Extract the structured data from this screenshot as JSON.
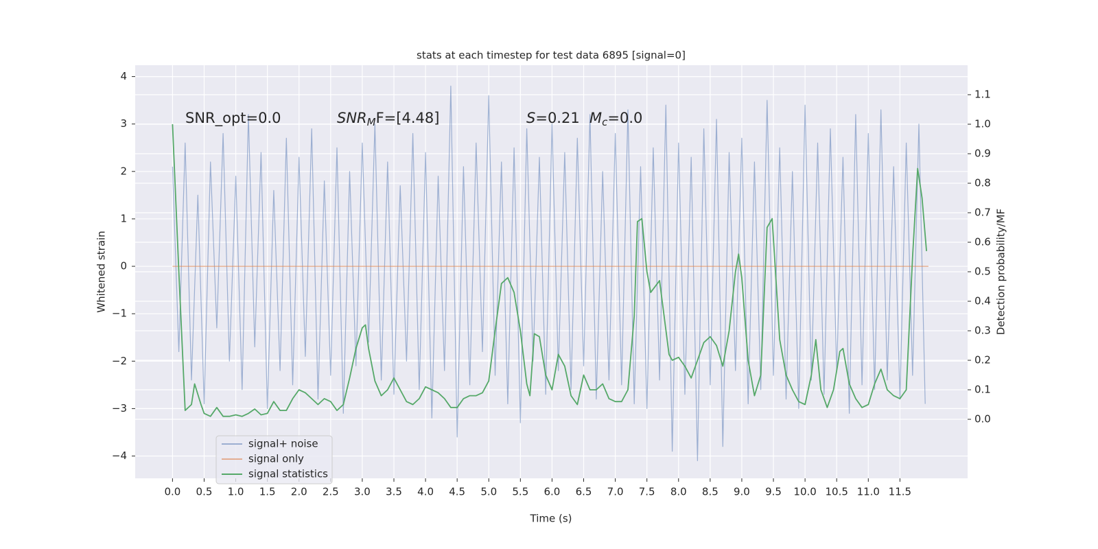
{
  "chart_data": {
    "type": "line",
    "title": "stats at each timestep for test data 6895 [signal=0]",
    "xlabel": "Time (s)",
    "ylabel": "Whitened strain",
    "y2label": "Detection probability/MF",
    "xlim": [
      -0.59,
      12.57
    ],
    "ylim": [
      -4.47,
      4.24
    ],
    "y2lim": [
      -0.2,
      1.2
    ],
    "xticks": [
      {
        "value": 0,
        "label": "0.0"
      },
      {
        "value": 0.5,
        "label": "0.5"
      },
      {
        "value": 1,
        "label": "1.0"
      },
      {
        "value": 1.5,
        "label": "1.5"
      },
      {
        "value": 2,
        "label": "2.0"
      },
      {
        "value": 2.5,
        "label": "2.5"
      },
      {
        "value": 3,
        "label": "3.0"
      },
      {
        "value": 3.5,
        "label": "3.5"
      },
      {
        "value": 4,
        "label": "4.0"
      },
      {
        "value": 4.5,
        "label": "4.5"
      },
      {
        "value": 5,
        "label": "5.0"
      },
      {
        "value": 5.5,
        "label": "5.5"
      },
      {
        "value": 6,
        "label": "6.0"
      },
      {
        "value": 6.5,
        "label": "6.5"
      },
      {
        "value": 7,
        "label": "7.0"
      },
      {
        "value": 7.5,
        "label": "7.5"
      },
      {
        "value": 8,
        "label": "8.0"
      },
      {
        "value": 8.5,
        "label": "8.5"
      },
      {
        "value": 9,
        "label": "9.0"
      },
      {
        "value": 9.5,
        "label": "9.5"
      },
      {
        "value": 10,
        "label": "10.0"
      },
      {
        "value": 10.5,
        "label": "10.5"
      },
      {
        "value": 11,
        "label": "11.0"
      },
      {
        "value": 11.5,
        "label": "11.5"
      }
    ],
    "yticks": [
      {
        "value": -4,
        "label": "−4"
      },
      {
        "value": -3,
        "label": "−3"
      },
      {
        "value": -2,
        "label": "−2"
      },
      {
        "value": -1,
        "label": "−1"
      },
      0,
      1,
      2,
      3,
      4
    ],
    "y2ticks": [
      {
        "value": 0,
        "label": "0.0"
      },
      0.1,
      0.2,
      0.3,
      0.4,
      0.5,
      0.6,
      0.7,
      0.8,
      0.9,
      {
        "value": 1,
        "label": "1.0"
      },
      1.1
    ],
    "grid": true,
    "legend": "lower left",
    "annotations": [
      {
        "text": "SNR_opt=0.0"
      },
      {
        "text": "SNR",
        "subscript": "M",
        "suffix": "F=[4.48]"
      },
      {
        "text": "S",
        "suffix": "=0.21"
      },
      {
        "text": "M",
        "subscript": "c",
        "suffix": "=0.0"
      }
    ],
    "series": [
      {
        "name": "signal+ noise",
        "color": "#4c72b0",
        "axis": "y",
        "x": [
          0,
          0.1,
          0.2,
          0.3,
          0.4,
          0.5,
          0.6,
          0.7,
          0.8,
          0.9,
          1,
          1.1,
          1.2,
          1.3,
          1.4,
          1.5,
          1.6,
          1.7,
          1.8,
          1.9,
          2,
          2.1,
          2.2,
          2.3,
          2.4,
          2.5,
          2.6,
          2.7,
          2.8,
          2.9,
          3,
          3.1,
          3.2,
          3.3,
          3.4,
          3.5,
          3.6,
          3.7,
          3.8,
          3.9,
          4,
          4.1,
          4.2,
          4.3,
          4.4,
          4.5,
          4.6,
          4.7,
          4.8,
          4.9,
          5,
          5.1,
          5.2,
          5.3,
          5.4,
          5.5,
          5.6,
          5.7,
          5.8,
          5.9,
          6,
          6.1,
          6.2,
          6.3,
          6.4,
          6.5,
          6.6,
          6.7,
          6.8,
          6.9,
          7,
          7.1,
          7.2,
          7.3,
          7.4,
          7.5,
          7.6,
          7.7,
          7.8,
          7.9,
          8,
          8.1,
          8.2,
          8.3,
          8.4,
          8.5,
          8.6,
          8.7,
          8.8,
          8.9,
          9,
          9.1,
          9.2,
          9.3,
          9.4,
          9.5,
          9.6,
          9.7,
          9.8,
          9.9,
          10,
          10.1,
          10.2,
          10.3,
          10.4,
          10.5,
          10.6,
          10.7,
          10.8,
          10.9,
          11,
          11.1,
          11.2,
          11.3,
          11.4,
          11.5,
          11.6,
          11.7,
          11.8,
          11.9
        ],
        "values": [
          2.1,
          -1.8,
          2.6,
          -2.4,
          1.5,
          -2.9,
          2.2,
          -1.3,
          2.8,
          -2.0,
          1.9,
          -2.6,
          3.2,
          -1.7,
          2.4,
          -3.0,
          1.6,
          -2.2,
          2.7,
          -2.5,
          2.3,
          -1.9,
          2.9,
          -2.8,
          1.8,
          -2.3,
          2.5,
          -3.1,
          2.0,
          -2.1,
          2.6,
          -1.6,
          3.0,
          -2.4,
          2.2,
          -2.7,
          1.7,
          -2.0,
          2.8,
          -2.6,
          2.4,
          -3.2,
          1.9,
          -2.2,
          3.8,
          -3.6,
          2.1,
          -2.5,
          2.6,
          -1.8,
          3.6,
          -2.3,
          2.2,
          -2.9,
          2.5,
          -3.3,
          2.9,
          -2.0,
          2.3,
          -2.7,
          3.0,
          -2.2,
          2.4,
          -2.6,
          2.7,
          -2.1,
          3.2,
          -2.8,
          2.0,
          -2.4,
          2.8,
          -2.5,
          3.3,
          -2.9,
          2.1,
          -3.0,
          2.5,
          -2.4,
          3.4,
          -3.9,
          2.6,
          -2.7,
          2.3,
          -4.1,
          2.9,
          -2.5,
          3.1,
          -3.8,
          2.4,
          -2.2,
          2.7,
          -2.9,
          2.2,
          -2.6,
          3.5,
          -2.3,
          2.5,
          -2.8,
          2.0,
          -3.0,
          3.4,
          -2.4,
          2.6,
          -2.7,
          2.9,
          -2.2,
          2.3,
          -3.1,
          3.2,
          -2.5,
          2.8,
          -2.6,
          3.3,
          -2.4,
          2.1,
          -2.8,
          2.6,
          -2.3,
          3.0,
          -2.9
        ]
      },
      {
        "name": "signal only",
        "color": "#dd8452",
        "axis": "y",
        "x": [
          0,
          11.95
        ],
        "values": [
          0,
          0
        ]
      },
      {
        "name": "signal statistics",
        "color": "#55a868",
        "axis": "y2",
        "x": [
          0,
          0.1,
          0.2,
          0.3,
          0.35,
          0.45,
          0.5,
          0.6,
          0.7,
          0.8,
          0.9,
          1,
          1.1,
          1.2,
          1.3,
          1.4,
          1.5,
          1.6,
          1.7,
          1.8,
          1.9,
          2,
          2.1,
          2.2,
          2.3,
          2.4,
          2.5,
          2.6,
          2.7,
          2.8,
          2.9,
          3,
          3.05,
          3.1,
          3.2,
          3.3,
          3.4,
          3.5,
          3.6,
          3.7,
          3.8,
          3.9,
          4,
          4.1,
          4.2,
          4.3,
          4.4,
          4.5,
          4.6,
          4.7,
          4.8,
          4.9,
          5,
          5.1,
          5.2,
          5.3,
          5.4,
          5.5,
          5.6,
          5.65,
          5.72,
          5.8,
          5.9,
          6,
          6.1,
          6.2,
          6.3,
          6.4,
          6.5,
          6.6,
          6.7,
          6.8,
          6.9,
          7,
          7.1,
          7.2,
          7.3,
          7.35,
          7.42,
          7.5,
          7.56,
          7.7,
          7.85,
          7.9,
          8,
          8.1,
          8.2,
          8.3,
          8.4,
          8.5,
          8.6,
          8.7,
          8.8,
          8.9,
          8.95,
          9,
          9.1,
          9.2,
          9.3,
          9.4,
          9.48,
          9.6,
          9.7,
          9.8,
          9.9,
          10,
          10.1,
          10.17,
          10.25,
          10.35,
          10.45,
          10.55,
          10.6,
          10.7,
          10.8,
          10.9,
          11,
          11.1,
          11.2,
          11.3,
          11.4,
          11.5,
          11.6,
          11.7,
          11.78,
          11.85,
          11.92
        ],
        "values": [
          1.0,
          0.5,
          0.03,
          0.05,
          0.12,
          0.05,
          0.02,
          0.01,
          0.04,
          0.01,
          0.01,
          0.015,
          0.01,
          0.02,
          0.035,
          0.015,
          0.02,
          0.06,
          0.03,
          0.03,
          0.07,
          0.1,
          0.09,
          0.07,
          0.05,
          0.07,
          0.06,
          0.03,
          0.05,
          0.14,
          0.24,
          0.31,
          0.32,
          0.24,
          0.13,
          0.08,
          0.1,
          0.14,
          0.1,
          0.06,
          0.05,
          0.07,
          0.11,
          0.1,
          0.09,
          0.07,
          0.04,
          0.04,
          0.07,
          0.08,
          0.08,
          0.09,
          0.13,
          0.3,
          0.46,
          0.48,
          0.43,
          0.3,
          0.12,
          0.08,
          0.29,
          0.28,
          0.15,
          0.1,
          0.22,
          0.18,
          0.08,
          0.05,
          0.15,
          0.1,
          0.1,
          0.12,
          0.07,
          0.06,
          0.06,
          0.1,
          0.35,
          0.67,
          0.68,
          0.5,
          0.43,
          0.47,
          0.22,
          0.2,
          0.21,
          0.18,
          0.14,
          0.2,
          0.26,
          0.28,
          0.25,
          0.18,
          0.3,
          0.5,
          0.56,
          0.48,
          0.2,
          0.08,
          0.15,
          0.65,
          0.68,
          0.27,
          0.15,
          0.1,
          0.06,
          0.05,
          0.15,
          0.27,
          0.1,
          0.04,
          0.1,
          0.23,
          0.24,
          0.12,
          0.07,
          0.04,
          0.05,
          0.12,
          0.17,
          0.1,
          0.08,
          0.07,
          0.1,
          0.55,
          0.85,
          0.75,
          0.57
        ]
      }
    ]
  }
}
